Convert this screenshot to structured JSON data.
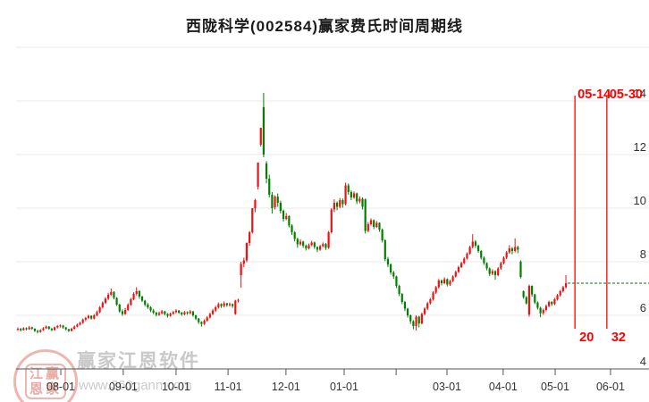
{
  "title": "西陇科学(002584)赢家费氏时间周期线",
  "stock": {
    "name": "西陇科学",
    "code": "002584",
    "indicator": "赢家费氏时间周期线"
  },
  "watermark": {
    "logo_top": "江赢",
    "logo_bottom": "恩家",
    "brand": "赢家江恩软件",
    "url": "www.360gann.com"
  },
  "colors": {
    "up": "#ee1111",
    "down": "#008000",
    "grid": "#e8e8e8",
    "axis": "#555555",
    "label": "#333333",
    "annotation": "#ff0000",
    "dashed_line": "#007700"
  },
  "chart_data": {
    "type": "candlestick",
    "title": "西陇科学(002584)赢家费氏时间周期线",
    "legend_position": "none",
    "grid": true,
    "y_axis": {
      "side": "right",
      "range": [
        4,
        16
      ],
      "ticks": [
        4,
        6,
        8,
        10,
        12,
        14
      ]
    },
    "x_axis": {
      "ticks": [
        {
          "label": "08-01",
          "day": 15.2
        },
        {
          "label": "09-01",
          "day": 37.3
        },
        {
          "label": "10-01",
          "day": 56.0
        },
        {
          "label": "11-01",
          "day": 74.4
        },
        {
          "label": "12-01",
          "day": 94.9
        },
        {
          "label": "01-01",
          "day": 115.5
        },
        {
          "label": "",
          "day": 133.9
        },
        {
          "label": "03-01",
          "day": 151.9
        },
        {
          "label": "04-01",
          "day": 171.8
        },
        {
          "label": "05-01",
          "day": 190.2
        },
        {
          "label": "06-01",
          "day": 209.8
        }
      ]
    },
    "fibonacci_time_lines": [
      {
        "date": "05-14",
        "bars": "20",
        "day": 197.2
      },
      {
        "date": "05-30",
        "bars": "32",
        "day": 208.5
      }
    ],
    "last_price_line": {
      "value": 7.2,
      "style": "dashed"
    },
    "candles_ohlc": [
      [
        5.48,
        5.55,
        5.42,
        5.5
      ],
      [
        5.5,
        5.53,
        5.4,
        5.45
      ],
      [
        5.45,
        5.56,
        5.43,
        5.52
      ],
      [
        5.52,
        5.55,
        5.44,
        5.48
      ],
      [
        5.48,
        5.6,
        5.46,
        5.55
      ],
      [
        5.55,
        5.58,
        5.46,
        5.5
      ],
      [
        5.5,
        5.52,
        5.38,
        5.42
      ],
      [
        5.42,
        5.46,
        5.33,
        5.38
      ],
      [
        5.38,
        5.48,
        5.35,
        5.45
      ],
      [
        5.45,
        5.56,
        5.42,
        5.52
      ],
      [
        5.52,
        5.62,
        5.49,
        5.58
      ],
      [
        5.58,
        5.6,
        5.46,
        5.5
      ],
      [
        5.5,
        5.53,
        5.41,
        5.45
      ],
      [
        5.45,
        5.58,
        5.43,
        5.55
      ],
      [
        5.55,
        5.64,
        5.51,
        5.6
      ],
      [
        5.6,
        5.66,
        5.54,
        5.62
      ],
      [
        5.62,
        5.64,
        5.5,
        5.55
      ],
      [
        5.55,
        5.57,
        5.44,
        5.48
      ],
      [
        5.48,
        5.5,
        5.38,
        5.42
      ],
      [
        5.42,
        5.54,
        5.4,
        5.5
      ],
      [
        5.5,
        5.62,
        5.47,
        5.58
      ],
      [
        5.58,
        5.7,
        5.55,
        5.65
      ],
      [
        5.65,
        5.76,
        5.62,
        5.72
      ],
      [
        5.72,
        5.88,
        5.68,
        5.84
      ],
      [
        5.84,
        5.95,
        5.78,
        5.9
      ],
      [
        5.9,
        6.02,
        5.86,
        5.98
      ],
      [
        5.98,
        6.0,
        5.84,
        5.88
      ],
      [
        5.88,
        6.05,
        5.85,
        6.0
      ],
      [
        6.0,
        6.18,
        5.96,
        6.12
      ],
      [
        6.12,
        6.35,
        6.08,
        6.3
      ],
      [
        6.3,
        6.52,
        6.26,
        6.47
      ],
      [
        6.47,
        6.68,
        6.42,
        6.62
      ],
      [
        6.62,
        6.84,
        6.57,
        6.77
      ],
      [
        6.77,
        7.0,
        6.72,
        6.87
      ],
      [
        6.87,
        6.9,
        6.6,
        6.65
      ],
      [
        6.65,
        6.68,
        6.35,
        6.4
      ],
      [
        6.4,
        6.44,
        6.1,
        6.15
      ],
      [
        6.15,
        6.22,
        5.98,
        6.05
      ],
      [
        6.05,
        6.28,
        6.02,
        6.2
      ],
      [
        6.2,
        6.45,
        6.17,
        6.4
      ],
      [
        6.4,
        6.65,
        6.36,
        6.6
      ],
      [
        6.6,
        6.86,
        6.56,
        6.8
      ],
      [
        6.8,
        7.05,
        6.74,
        6.9
      ],
      [
        6.9,
        6.94,
        6.62,
        6.7
      ],
      [
        6.7,
        6.73,
        6.5,
        6.55
      ],
      [
        6.55,
        6.58,
        6.34,
        6.4
      ],
      [
        6.4,
        6.46,
        6.24,
        6.3
      ],
      [
        6.3,
        6.34,
        6.12,
        6.18
      ],
      [
        6.18,
        6.24,
        6.04,
        6.1
      ],
      [
        6.1,
        6.14,
        5.96,
        6.02
      ],
      [
        6.02,
        6.14,
        5.98,
        6.08
      ],
      [
        6.08,
        6.2,
        6.04,
        6.15
      ],
      [
        6.15,
        6.17,
        6.0,
        6.05
      ],
      [
        6.05,
        6.08,
        5.92,
        5.98
      ],
      [
        5.98,
        6.1,
        5.95,
        6.06
      ],
      [
        6.06,
        6.17,
        6.02,
        6.12
      ],
      [
        6.12,
        6.23,
        6.08,
        6.18
      ],
      [
        6.18,
        6.2,
        6.05,
        6.1
      ],
      [
        6.1,
        6.13,
        5.98,
        6.04
      ],
      [
        6.04,
        6.16,
        6.0,
        6.12
      ],
      [
        6.12,
        6.15,
        6.02,
        6.08
      ],
      [
        6.08,
        6.2,
        6.04,
        6.15
      ],
      [
        6.15,
        6.16,
        5.95,
        6.0
      ],
      [
        6.0,
        6.02,
        5.82,
        5.88
      ],
      [
        5.88,
        5.9,
        5.68,
        5.75
      ],
      [
        5.75,
        5.78,
        5.58,
        5.68
      ],
      [
        5.68,
        5.85,
        5.64,
        5.8
      ],
      [
        5.8,
        5.97,
        5.76,
        5.92
      ],
      [
        5.92,
        6.1,
        5.88,
        6.05
      ],
      [
        6.05,
        6.24,
        6.01,
        6.18
      ],
      [
        6.18,
        6.36,
        6.13,
        6.3
      ],
      [
        6.3,
        6.48,
        6.25,
        6.42
      ],
      [
        6.42,
        6.45,
        6.28,
        6.35
      ],
      [
        6.35,
        6.52,
        6.3,
        6.45
      ],
      [
        6.45,
        6.47,
        6.32,
        6.38
      ],
      [
        6.38,
        6.48,
        6.33,
        6.42
      ],
      [
        6.42,
        6.44,
        6.28,
        6.35
      ],
      [
        6.05,
        6.58,
        6.02,
        6.55
      ],
      [
        6.55,
        6.62,
        6.48,
        6.58
      ],
      [
        7.5,
        8.0,
        7.03,
        7.92
      ],
      [
        7.92,
        8.15,
        7.8,
        8.05
      ],
      [
        8.05,
        8.72,
        7.98,
        8.7
      ],
      [
        8.7,
        9.15,
        8.6,
        9.1
      ],
      [
        9.1,
        10.0,
        9.05,
        10.0
      ],
      [
        10.0,
        10.35,
        9.85,
        10.3
      ],
      [
        10.8,
        11.7,
        10.7,
        11.7
      ],
      [
        12.37,
        13.0,
        12.3,
        13.0
      ],
      [
        13.77,
        14.3,
        11.9,
        12.0
      ],
      [
        11.67,
        11.75,
        10.93,
        11.1
      ],
      [
        11.1,
        11.25,
        10.4,
        10.5
      ],
      [
        10.5,
        10.6,
        9.8,
        10.0
      ],
      [
        10.03,
        10.48,
        9.95,
        10.43
      ],
      [
        10.43,
        10.55,
        10.05,
        10.2
      ],
      [
        10.2,
        10.28,
        9.8,
        9.9
      ],
      [
        9.9,
        9.95,
        9.5,
        9.6
      ],
      [
        9.6,
        9.82,
        9.55,
        9.7
      ],
      [
        9.7,
        9.74,
        9.28,
        9.35
      ],
      [
        9.35,
        9.4,
        9.0,
        9.1
      ],
      [
        9.1,
        9.14,
        8.76,
        8.85
      ],
      [
        8.85,
        8.9,
        8.52,
        8.65
      ],
      [
        8.65,
        8.84,
        8.6,
        8.75
      ],
      [
        8.75,
        8.78,
        8.52,
        8.6
      ],
      [
        8.6,
        8.64,
        8.42,
        8.5
      ],
      [
        8.5,
        8.68,
        8.46,
        8.62
      ],
      [
        8.62,
        8.78,
        8.58,
        8.72
      ],
      [
        8.72,
        8.75,
        8.48,
        8.55
      ],
      [
        8.55,
        8.58,
        8.36,
        8.45
      ],
      [
        8.45,
        8.63,
        8.41,
        8.58
      ],
      [
        8.58,
        8.72,
        8.54,
        8.66
      ],
      [
        8.66,
        8.7,
        8.44,
        8.52
      ],
      [
        8.52,
        9.15,
        8.48,
        9.1
      ],
      [
        9.1,
        10.0,
        9.05,
        9.95
      ],
      [
        9.95,
        10.33,
        9.85,
        10.2
      ],
      [
        10.2,
        10.25,
        9.92,
        10.05
      ],
      [
        10.05,
        10.38,
        10.0,
        10.3
      ],
      [
        10.3,
        10.36,
        10.02,
        10.15
      ],
      [
        10.15,
        10.95,
        10.1,
        10.85
      ],
      [
        10.85,
        10.92,
        10.5,
        10.6
      ],
      [
        10.6,
        10.66,
        10.3,
        10.4
      ],
      [
        10.4,
        10.62,
        10.35,
        10.55
      ],
      [
        10.55,
        10.58,
        10.15,
        10.25
      ],
      [
        10.25,
        10.44,
        10.18,
        10.35
      ],
      [
        10.35,
        10.4,
        9.95,
        10.05
      ],
      [
        10.33,
        10.36,
        9.05,
        9.15
      ],
      [
        9.15,
        9.48,
        9.1,
        9.4
      ],
      [
        9.4,
        9.62,
        9.35,
        9.55
      ],
      [
        9.55,
        9.58,
        9.22,
        9.3
      ],
      [
        9.3,
        9.52,
        9.26,
        9.45
      ],
      [
        9.45,
        9.47,
        9.12,
        9.2
      ],
      [
        9.2,
        9.24,
        8.72,
        8.8
      ],
      [
        8.8,
        8.84,
        8.02,
        8.1
      ],
      [
        8.1,
        8.18,
        7.8,
        7.9
      ],
      [
        7.9,
        7.94,
        7.52,
        7.6
      ],
      [
        7.6,
        7.66,
        7.36,
        7.45
      ],
      [
        7.45,
        7.48,
        7.02,
        7.1
      ],
      [
        7.1,
        7.14,
        6.72,
        6.8
      ],
      [
        6.8,
        6.83,
        6.42,
        6.5
      ],
      [
        6.5,
        6.54,
        6.16,
        6.25
      ],
      [
        6.25,
        6.28,
        5.92,
        6.0
      ],
      [
        6.0,
        6.03,
        5.68,
        5.78
      ],
      [
        5.78,
        5.82,
        5.48,
        5.6
      ],
      [
        5.6,
        6.0,
        5.43,
        5.95
      ],
      [
        5.95,
        5.98,
        5.55,
        5.7
      ],
      [
        5.7,
        6.1,
        5.66,
        6.05
      ],
      [
        6.05,
        6.3,
        6.0,
        6.25
      ],
      [
        6.25,
        6.5,
        6.2,
        6.45
      ],
      [
        6.45,
        6.65,
        6.4,
        6.6
      ],
      [
        6.6,
        6.9,
        6.55,
        6.85
      ],
      [
        6.85,
        7.1,
        6.8,
        7.05
      ],
      [
        7.05,
        7.36,
        7.0,
        7.3
      ],
      [
        7.3,
        7.34,
        7.12,
        7.2
      ],
      [
        7.2,
        7.42,
        7.16,
        7.35
      ],
      [
        7.35,
        7.38,
        7.08,
        7.15
      ],
      [
        7.15,
        7.33,
        7.1,
        7.28
      ],
      [
        7.28,
        7.5,
        7.24,
        7.45
      ],
      [
        7.45,
        7.67,
        7.41,
        7.62
      ],
      [
        7.62,
        7.85,
        7.58,
        7.8
      ],
      [
        7.8,
        8.0,
        7.76,
        7.95
      ],
      [
        7.95,
        8.17,
        7.91,
        8.12
      ],
      [
        8.12,
        8.35,
        8.08,
        8.3
      ],
      [
        8.3,
        8.6,
        8.26,
        8.55
      ],
      [
        8.55,
        9.03,
        8.5,
        8.75
      ],
      [
        8.75,
        8.8,
        8.52,
        8.6
      ],
      [
        8.6,
        8.64,
        8.34,
        8.4
      ],
      [
        8.4,
        8.44,
        8.08,
        8.15
      ],
      [
        8.15,
        8.2,
        7.88,
        7.95
      ],
      [
        7.95,
        7.98,
        7.68,
        7.75
      ],
      [
        7.75,
        7.79,
        7.46,
        7.55
      ],
      [
        7.55,
        7.72,
        7.5,
        7.65
      ],
      [
        7.65,
        7.68,
        7.33,
        7.5
      ],
      [
        7.5,
        7.8,
        7.46,
        7.75
      ],
      [
        7.75,
        8.0,
        7.7,
        7.95
      ],
      [
        7.95,
        8.2,
        7.9,
        8.15
      ],
      [
        8.15,
        8.4,
        8.1,
        8.35
      ],
      [
        8.35,
        8.62,
        8.3,
        8.5
      ],
      [
        8.5,
        8.55,
        8.28,
        8.4
      ],
      [
        8.4,
        8.87,
        8.35,
        8.55
      ],
      [
        8.55,
        8.6,
        8.32,
        8.45
      ],
      [
        8.0,
        8.05,
        7.38,
        7.43
      ],
      [
        6.9,
        6.93,
        6.62,
        6.68
      ],
      [
        6.68,
        6.72,
        6.4,
        6.45
      ],
      [
        6.03,
        7.15,
        5.95,
        7.1
      ],
      [
        7.1,
        7.12,
        6.7,
        6.78
      ],
      [
        6.78,
        6.8,
        6.42,
        6.48
      ],
      [
        6.48,
        6.52,
        6.22,
        6.28
      ],
      [
        6.28,
        6.32,
        5.93,
        6.08
      ],
      [
        6.08,
        6.25,
        6.02,
        6.2
      ],
      [
        6.2,
        6.4,
        6.15,
        6.35
      ],
      [
        6.35,
        6.55,
        6.3,
        6.5
      ],
      [
        6.5,
        6.53,
        6.35,
        6.42
      ],
      [
        6.42,
        6.65,
        6.38,
        6.6
      ],
      [
        6.6,
        6.8,
        6.55,
        6.75
      ],
      [
        6.75,
        6.95,
        6.7,
        6.9
      ],
      [
        6.9,
        7.1,
        6.85,
        7.05
      ],
      [
        7.05,
        7.5,
        7.0,
        7.2
      ]
    ]
  }
}
